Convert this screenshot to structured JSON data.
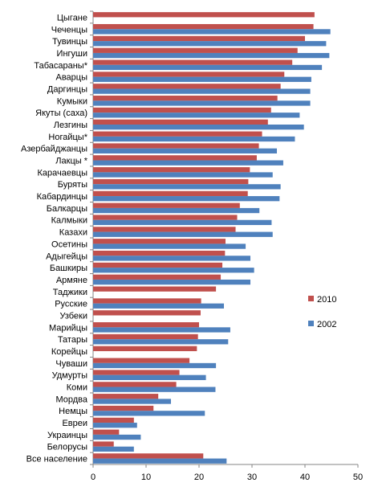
{
  "chart_data": {
    "type": "bar",
    "orientation": "horizontal",
    "categories": [
      "Цыгане",
      "Чеченцы",
      "Тувинцы",
      "Ингуши",
      "Табасараны*",
      "Аварцы",
      "Даргинцы",
      "Кумыки",
      "Якуты (саха)",
      "Лезгины",
      "Ногайцы*",
      "Азербайджанцы",
      "Лакцы *",
      "Карачаевцы",
      "Буряты",
      "Кабардинцы",
      "Балкарцы",
      "Калмыки",
      "Казахи",
      "Осетины",
      "Адыгейцы",
      "Башкиры",
      "Армяне",
      "Таджики",
      "Русские",
      "Узбеки",
      "Марийцы",
      "Татары",
      "Корейцы",
      "Чуваши",
      "Удмурты",
      "Коми",
      "Мордва",
      "Немцы",
      "Евреи",
      "Украинцы",
      "Белорусы",
      "Все население"
    ],
    "series": [
      {
        "name": "2010",
        "color": "#c0504d",
        "values": [
          41.8,
          41.6,
          40.0,
          38.6,
          37.6,
          36.1,
          35.4,
          34.8,
          33.6,
          33.0,
          31.9,
          31.3,
          30.9,
          29.6,
          29.3,
          29.2,
          27.7,
          27.2,
          26.9,
          25.0,
          24.9,
          24.4,
          24.1,
          23.2,
          20.4,
          20.3,
          20.0,
          19.8,
          19.6,
          18.2,
          16.3,
          15.7,
          12.3,
          11.4,
          7.7,
          4.9,
          3.9,
          20.8
        ]
      },
      {
        "name": "2002",
        "color": "#4f81bd",
        "values": [
          null,
          44.8,
          44.0,
          44.6,
          43.2,
          41.2,
          41.0,
          41.0,
          39.0,
          39.8,
          38.1,
          34.7,
          35.9,
          33.9,
          35.4,
          35.2,
          31.4,
          33.7,
          33.9,
          28.8,
          29.7,
          30.4,
          29.7,
          null,
          24.7,
          null,
          25.9,
          25.5,
          null,
          23.2,
          21.3,
          23.1,
          14.7,
          21.1,
          8.3,
          9.0,
          7.7,
          25.2
        ]
      }
    ],
    "xlim": [
      0,
      50
    ],
    "xticks": [
      "0",
      "10",
      "20",
      "30",
      "40",
      "50"
    ],
    "grid": false,
    "legend_position": "right",
    "title": "",
    "xlabel": "",
    "ylabel": ""
  }
}
